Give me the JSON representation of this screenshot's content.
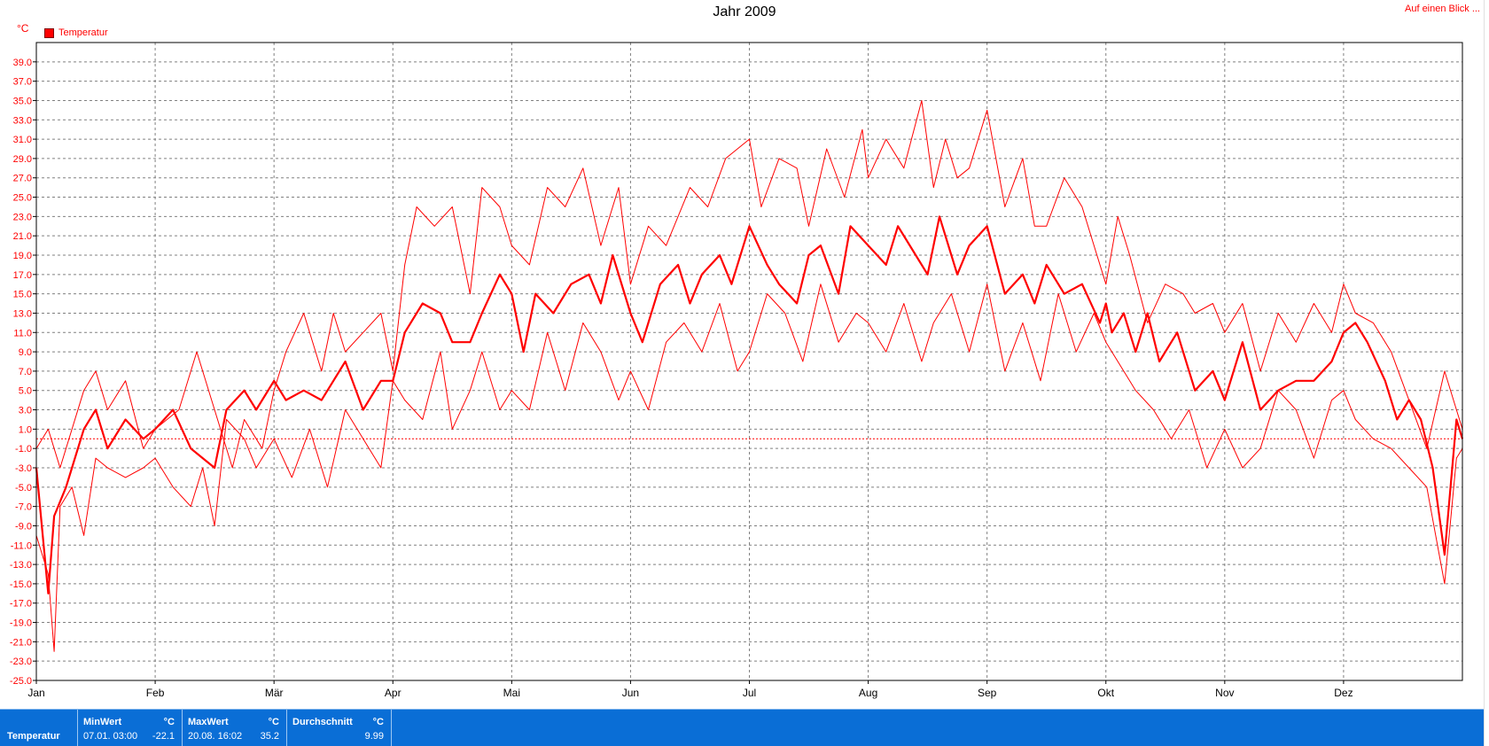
{
  "header": {
    "title": "Jahr 2009",
    "link": "Auf einen Blick ...",
    "unit": "°C",
    "legend_label": "Temperatur"
  },
  "colors": {
    "series": "#ff0000",
    "grid": "#808080",
    "status_bg": "#0a6ed6"
  },
  "statusbar": {
    "series_label": "Temperatur",
    "min": {
      "header": "MinWert",
      "unit": "°C",
      "time": "07.01.  03:00",
      "value": "-22.1"
    },
    "max": {
      "header": "MaxWert",
      "unit": "°C",
      "time": "20.08.  16:02",
      "value": "35.2"
    },
    "avg": {
      "header": "Durchschnitt",
      "unit": "°C",
      "value": "9.99"
    }
  },
  "chart_data": {
    "type": "line",
    "title": "Jahr 2009",
    "ylabel": "°C",
    "ylim": [
      -25.0,
      41.0
    ],
    "yticks": [
      "39.0",
      "37.0",
      "35.0",
      "33.0",
      "31.0",
      "29.0",
      "27.0",
      "25.0",
      "23.0",
      "21.0",
      "19.0",
      "17.0",
      "15.0",
      "13.0",
      "11.0",
      "9.0",
      "7.0",
      "5.0",
      "3.0",
      "1.0",
      "-1.0",
      "-3.0",
      "-5.0",
      "-7.0",
      "-9.0",
      "-11.0",
      "-13.0",
      "-15.0",
      "-17.0",
      "-19.0",
      "-21.0",
      "-23.0",
      "-25.0"
    ],
    "xlim": [
      0,
      12
    ],
    "xticks": [
      {
        "label": "Jan",
        "x": 0
      },
      {
        "label": "Feb",
        "x": 1
      },
      {
        "label": "Mär",
        "x": 2
      },
      {
        "label": "Apr",
        "x": 3
      },
      {
        "label": "Mai",
        "x": 4
      },
      {
        "label": "Jun",
        "x": 5
      },
      {
        "label": "Jul",
        "x": 6
      },
      {
        "label": "Aug",
        "x": 7
      },
      {
        "label": "Sep",
        "x": 8
      },
      {
        "label": "Okt",
        "x": 9
      },
      {
        "label": "Nov",
        "x": 10
      },
      {
        "label": "Dez",
        "x": 11
      }
    ],
    "reference_line": 0.0,
    "grid": true,
    "legend": "top-left",
    "series": [
      {
        "name": "Temperatur",
        "role": "max",
        "x": [
          0.0,
          0.1,
          0.2,
          0.3,
          0.4,
          0.5,
          0.6,
          0.75,
          0.9,
          1.0,
          1.2,
          1.35,
          1.5,
          1.65,
          1.75,
          1.9,
          2.0,
          2.1,
          2.25,
          2.4,
          2.5,
          2.6,
          2.75,
          2.9,
          3.0,
          3.1,
          3.2,
          3.35,
          3.5,
          3.65,
          3.75,
          3.9,
          4.0,
          4.15,
          4.3,
          4.45,
          4.6,
          4.75,
          4.9,
          5.0,
          5.15,
          5.3,
          5.5,
          5.65,
          5.8,
          5.9,
          6.0,
          6.1,
          6.25,
          6.4,
          6.5,
          6.65,
          6.8,
          6.95,
          7.0,
          7.15,
          7.3,
          7.45,
          7.55,
          7.65,
          7.75,
          7.85,
          8.0,
          8.15,
          8.3,
          8.4,
          8.5,
          8.65,
          8.8,
          8.9,
          9.0,
          9.1,
          9.2,
          9.35,
          9.5,
          9.65,
          9.75,
          9.9,
          10.0,
          10.15,
          10.3,
          10.45,
          10.6,
          10.75,
          10.9,
          11.0,
          11.1,
          11.25,
          11.4,
          11.55,
          11.7,
          11.85,
          12.0
        ],
        "y": [
          -1,
          1,
          -3,
          1,
          5,
          7,
          3,
          6,
          -1,
          1,
          3,
          9,
          3,
          -3,
          2,
          -1,
          5,
          9,
          13,
          7,
          13,
          9,
          11,
          13,
          7,
          18,
          24,
          22,
          24,
          15,
          26,
          24,
          20,
          18,
          26,
          24,
          28,
          20,
          26,
          16,
          22,
          20,
          26,
          24,
          29,
          30,
          31,
          24,
          29,
          28,
          22,
          30,
          25,
          32,
          27,
          31,
          28,
          35,
          26,
          31,
          27,
          28,
          34,
          24,
          29,
          22,
          22,
          27,
          24,
          20,
          16,
          23,
          19,
          12,
          16,
          15,
          13,
          14,
          11,
          14,
          7,
          13,
          10,
          14,
          11,
          16,
          13,
          12,
          9,
          4,
          -1,
          7,
          1
        ]
      },
      {
        "name": "Temperatur",
        "role": "mean",
        "x": [
          0.0,
          0.1,
          0.15,
          0.25,
          0.3,
          0.4,
          0.5,
          0.6,
          0.75,
          0.9,
          1.0,
          1.15,
          1.3,
          1.4,
          1.5,
          1.6,
          1.75,
          1.85,
          2.0,
          2.1,
          2.25,
          2.4,
          2.5,
          2.6,
          2.75,
          2.9,
          3.0,
          3.1,
          3.25,
          3.4,
          3.5,
          3.65,
          3.75,
          3.9,
          4.0,
          4.1,
          4.2,
          4.35,
          4.5,
          4.65,
          4.75,
          4.85,
          5.0,
          5.1,
          5.25,
          5.4,
          5.5,
          5.6,
          5.75,
          5.85,
          6.0,
          6.15,
          6.25,
          6.4,
          6.5,
          6.6,
          6.75,
          6.85,
          7.0,
          7.15,
          7.25,
          7.4,
          7.5,
          7.6,
          7.75,
          7.85,
          8.0,
          8.15,
          8.3,
          8.4,
          8.5,
          8.65,
          8.8,
          8.95,
          9.0,
          9.05,
          9.15,
          9.25,
          9.35,
          9.45,
          9.6,
          9.75,
          9.9,
          10.0,
          10.15,
          10.3,
          10.45,
          10.6,
          10.75,
          10.9,
          11.0,
          11.1,
          11.2,
          11.35,
          11.45,
          11.55,
          11.65,
          11.75,
          11.85,
          11.95,
          12.0
        ],
        "y": [
          -3,
          -16,
          -8,
          -5,
          -3,
          1,
          3,
          -1,
          2,
          0,
          1,
          3,
          -1,
          -2,
          -3,
          3,
          5,
          3,
          6,
          4,
          5,
          4,
          6,
          8,
          3,
          6,
          6,
          11,
          14,
          13,
          10,
          10,
          13,
          17,
          15,
          9,
          15,
          13,
          16,
          17,
          14,
          19,
          13,
          10,
          16,
          18,
          14,
          17,
          19,
          16,
          22,
          18,
          16,
          14,
          19,
          20,
          15,
          22,
          20,
          18,
          22,
          19,
          17,
          23,
          17,
          20,
          22,
          15,
          17,
          14,
          18,
          15,
          16,
          12,
          14,
          11,
          13,
          9,
          13,
          8,
          11,
          5,
          7,
          4,
          10,
          3,
          5,
          6,
          6,
          8,
          11,
          12,
          10,
          6,
          2,
          4,
          2,
          -3,
          -12,
          2,
          0
        ]
      },
      {
        "name": "Temperatur",
        "role": "min",
        "x": [
          0.0,
          0.1,
          0.15,
          0.2,
          0.3,
          0.4,
          0.5,
          0.6,
          0.75,
          0.9,
          1.0,
          1.15,
          1.3,
          1.4,
          1.5,
          1.6,
          1.75,
          1.85,
          2.0,
          2.15,
          2.3,
          2.45,
          2.6,
          2.75,
          2.9,
          3.0,
          3.1,
          3.25,
          3.4,
          3.5,
          3.65,
          3.75,
          3.9,
          4.0,
          4.15,
          4.3,
          4.45,
          4.6,
          4.75,
          4.9,
          5.0,
          5.15,
          5.3,
          5.45,
          5.6,
          5.75,
          5.9,
          6.0,
          6.15,
          6.3,
          6.45,
          6.6,
          6.75,
          6.9,
          7.0,
          7.15,
          7.3,
          7.45,
          7.55,
          7.7,
          7.85,
          8.0,
          8.15,
          8.3,
          8.45,
          8.6,
          8.75,
          8.9,
          9.0,
          9.1,
          9.25,
          9.4,
          9.55,
          9.7,
          9.85,
          10.0,
          10.15,
          10.3,
          10.45,
          10.6,
          10.75,
          10.9,
          11.0,
          11.1,
          11.25,
          11.4,
          11.55,
          11.7,
          11.85,
          11.95,
          12.0
        ],
        "y": [
          -10,
          -14,
          -22,
          -7,
          -5,
          -10,
          -2,
          -3,
          -4,
          -3,
          -2,
          -5,
          -7,
          -3,
          -9,
          2,
          0,
          -3,
          0,
          -4,
          1,
          -5,
          3,
          0,
          -3,
          6,
          4,
          2,
          9,
          1,
          5,
          9,
          3,
          5,
          3,
          11,
          5,
          12,
          9,
          4,
          7,
          3,
          10,
          12,
          9,
          14,
          7,
          9,
          15,
          13,
          8,
          16,
          10,
          13,
          12,
          9,
          14,
          8,
          12,
          15,
          9,
          16,
          7,
          12,
          6,
          15,
          9,
          13,
          10,
          8,
          5,
          3,
          0,
          3,
          -3,
          1,
          -3,
          -1,
          5,
          3,
          -2,
          4,
          5,
          2,
          0,
          -1,
          -3,
          -5,
          -15,
          -2,
          -1
        ]
      }
    ]
  }
}
